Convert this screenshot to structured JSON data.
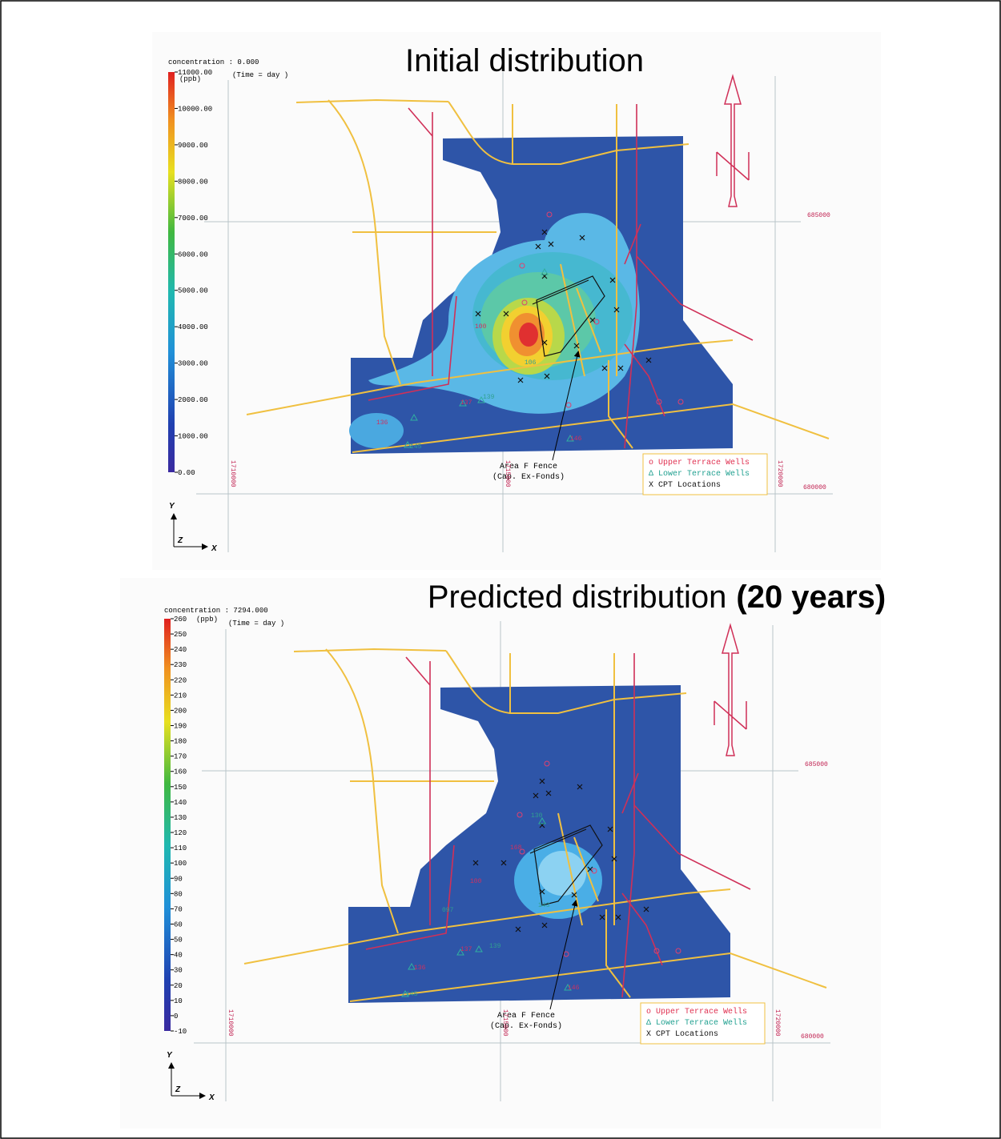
{
  "panels": [
    {
      "title": "Initial distribution",
      "header": "concentration : 0.000",
      "time": "(Time = day )",
      "unit": "(ppb)",
      "colorbar": [
        "11000.00",
        "10000.00",
        "9000.00",
        "8000.00",
        "7000.00",
        "6000.00",
        "5000.00",
        "4000.00",
        "3000.00",
        "2000.00",
        "1000.00",
        "0.00"
      ],
      "coords_x": [
        "1710000",
        "1715000",
        "1720000"
      ],
      "coords_y": [
        "685000",
        "680000"
      ],
      "annotation": [
        "Area F Fence",
        "(Cap. Ex-Fonds)"
      ],
      "legend": [
        "o Upper Terrace Wells",
        "Δ Lower Terrace Wells",
        "X CPT Locations"
      ],
      "axes": [
        "Y",
        "Z",
        "X"
      ],
      "wells": [
        "100",
        "106",
        "137",
        "139",
        "136",
        "145",
        "146"
      ]
    },
    {
      "title": "Predicted distribution",
      "title_bold": "(20 years)",
      "header": "concentration : 7294.000",
      "time": "(Time = day )",
      "unit": "(ppb)",
      "colorbar": [
        "260",
        "250",
        "240",
        "230",
        "220",
        "210",
        "200",
        "190",
        "180",
        "170",
        "160",
        "150",
        "140",
        "130",
        "120",
        "110",
        "100",
        "90",
        "80",
        "70",
        "60",
        "50",
        "40",
        "30",
        "20",
        "10",
        "0",
        "-10"
      ],
      "coords_x": [
        "1710000",
        "1715000",
        "1720000"
      ],
      "coords_y": [
        "685000",
        "680000"
      ],
      "annotation": [
        "Area F Fence",
        "(Cap. Ex-Fonds)"
      ],
      "legend": [
        "o Upper Terrace Wells",
        "Δ Lower Terrace Wells",
        "X CPT Locations"
      ],
      "axes": [
        "Y",
        "Z",
        "X"
      ],
      "wells": [
        "100",
        "097",
        "137",
        "139",
        "136",
        "145",
        "146",
        "143",
        "168",
        "130"
      ]
    }
  ]
}
